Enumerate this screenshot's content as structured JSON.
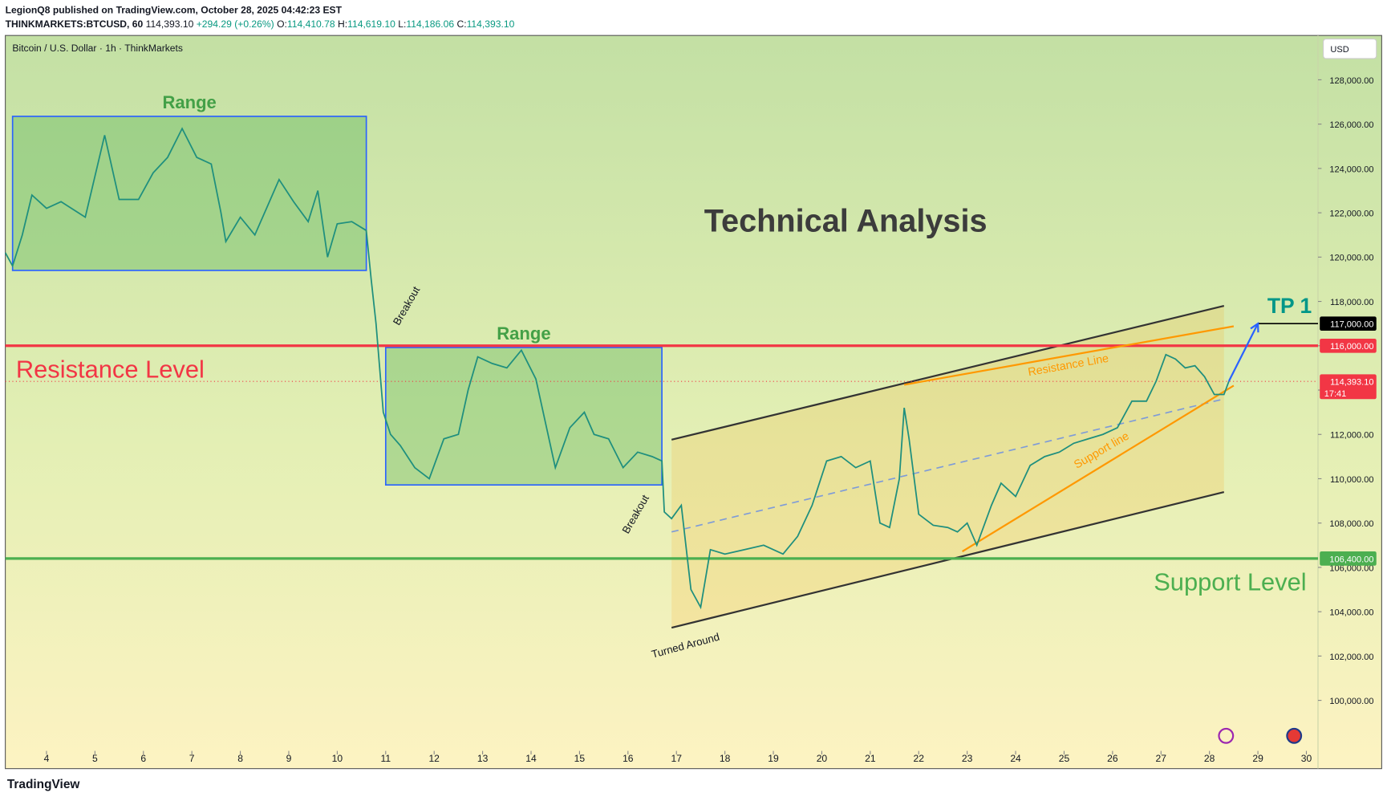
{
  "header": {
    "author": "LegionQ8 published on TradingView.com, October 28, 2025 04:42:23 EST",
    "symbol": "THINKMARKETS:BTCUSD, 60",
    "price": "114,393.10",
    "change": "+294.29 (+0.26%)",
    "ohlc": [
      {
        "key": "O:",
        "value": "114,410.78"
      },
      {
        "key": "H:",
        "value": "114,619.10"
      },
      {
        "key": "L:",
        "value": "114,186.06"
      },
      {
        "key": "C:",
        "value": "114,393.10"
      }
    ]
  },
  "chart_data": {
    "type": "line",
    "title": "Bitcoin / U.S. Dollar · 1h · ThinkMarkets",
    "currency": "USD",
    "annotation": "Technical Analysis",
    "color": "#1f8f7e",
    "x": [
      3.15,
      3.3,
      3.5,
      3.7,
      4.0,
      4.3,
      4.8,
      5.2,
      5.5,
      5.9,
      6.2,
      6.5,
      6.8,
      7.1,
      7.4,
      7.6,
      7.7,
      8.0,
      8.3,
      8.6,
      8.8,
      9.1,
      9.4,
      9.6,
      9.8,
      10.0,
      10.3,
      10.6,
      10.7,
      10.8,
      10.95,
      11.1,
      11.3,
      11.6,
      11.9,
      12.2,
      12.5,
      12.7,
      12.9,
      13.2,
      13.5,
      13.8,
      14.1,
      14.3,
      14.5,
      14.8,
      15.1,
      15.3,
      15.6,
      15.9,
      16.2,
      16.5,
      16.7,
      16.75,
      16.9,
      17.1,
      17.3,
      17.5,
      17.7,
      18.0,
      18.4,
      18.8,
      19.2,
      19.5,
      19.8,
      20.1,
      20.4,
      20.7,
      21.0,
      21.2,
      21.4,
      21.6,
      21.7,
      21.8,
      22.0,
      22.3,
      22.6,
      22.8,
      23.0,
      23.2,
      23.5,
      23.7,
      24.0,
      24.3,
      24.6,
      24.9,
      25.2,
      25.5,
      25.8,
      26.1,
      26.4,
      26.7,
      26.9,
      27.1,
      27.3,
      27.5,
      27.7,
      27.9,
      28.1,
      28.3,
      28.4
    ],
    "values": [
      120200,
      119600,
      121000,
      122800,
      122200,
      122500,
      121800,
      125500,
      122600,
      122600,
      123800,
      124500,
      125800,
      124500,
      124200,
      122000,
      120700,
      121800,
      121000,
      122500,
      123500,
      122500,
      121600,
      123000,
      120000,
      121500,
      121600,
      121200,
      119000,
      117000,
      113000,
      112000,
      111500,
      110500,
      110000,
      111800,
      112000,
      114000,
      115500,
      115200,
      115000,
      115800,
      114500,
      112500,
      110500,
      112300,
      113000,
      112000,
      111800,
      110500,
      111200,
      111000,
      110800,
      108500,
      108200,
      108800,
      105000,
      104200,
      106800,
      106600,
      106800,
      107000,
      106600,
      107400,
      108800,
      110800,
      111000,
      110500,
      110800,
      108000,
      107800,
      110000,
      113200,
      111800,
      108400,
      107900,
      107800,
      107600,
      108000,
      107000,
      108800,
      109800,
      109200,
      110600,
      111000,
      111200,
      111600,
      111800,
      112000,
      112300,
      113500,
      113500,
      114400,
      115600,
      115400,
      115000,
      115100,
      114600,
      113800,
      113800,
      114393.1
    ],
    "xlim": [
      3.15,
      30.24
    ],
    "xticks": [
      4,
      5,
      6,
      7,
      8,
      9,
      10,
      11,
      12,
      13,
      14,
      15,
      16,
      17,
      18,
      19,
      20,
      21,
      22,
      23,
      24,
      25,
      26,
      27,
      28,
      29,
      30
    ],
    "ylim": [
      96920,
      130000
    ],
    "yticks": [
      {
        "value": 100000,
        "label": "100,000.00"
      },
      {
        "value": 102000,
        "label": "102,000.00"
      },
      {
        "value": 104000,
        "label": "104,000.00"
      },
      {
        "value": 106000,
        "label": "106,000.00"
      },
      {
        "value": 108000,
        "label": "108,000.00"
      },
      {
        "value": 110000,
        "label": "110,000.00"
      },
      {
        "value": 112000,
        "label": "112,000.00"
      },
      {
        "value": 114000,
        "label": "114,000.00"
      },
      {
        "value": 116000,
        "label": "116,000.00"
      },
      {
        "value": 118000,
        "label": "118,000.00"
      },
      {
        "value": 120000,
        "label": "120,000.00"
      },
      {
        "value": 122000,
        "label": "122,000.00"
      },
      {
        "value": 124000,
        "label": "124,000.00"
      },
      {
        "value": 126000,
        "label": "126,000.00"
      },
      {
        "value": 128000,
        "label": "128,000.00"
      }
    ],
    "levels": [
      {
        "name": "Resistance Level",
        "value": 116000,
        "label": "116,000.00",
        "color": "#f23645"
      },
      {
        "name": "Support Level",
        "value": 106400,
        "label": "106,400.00",
        "color": "#4caf50"
      }
    ],
    "target": {
      "name": "TP 1",
      "value": 117000,
      "label": "117,000.00",
      "color": "#009688"
    },
    "last": {
      "value": 114393.1,
      "label": "114,393.10",
      "time": "17:41",
      "color": "#f23645"
    },
    "ranges": [
      {
        "label": "Range",
        "x": [
          3.3,
          10.6
        ],
        "y": [
          119400,
          126350
        ]
      },
      {
        "label": "Range",
        "x": [
          11.0,
          16.7
        ],
        "y": [
          109720,
          115920
        ]
      }
    ],
    "channel": {
      "upper": [
        [
          16.9,
          111760
        ],
        [
          28.3,
          117800
        ]
      ],
      "lower": [
        [
          16.9,
          103280
        ],
        [
          28.3,
          109400
        ]
      ],
      "mid": [
        [
          16.9,
          107600
        ],
        [
          28.3,
          113600
        ]
      ]
    },
    "trendlines": [
      {
        "label": "Resistance Line",
        "color": "#ff9800",
        "points": [
          [
            21.7,
            114240
          ],
          [
            28.5,
            116880
          ]
        ]
      },
      {
        "label": "Support line",
        "color": "#ff9800",
        "points": [
          [
            22.9,
            106720
          ],
          [
            28.5,
            114200
          ]
        ]
      }
    ],
    "arrow": [
      [
        28.4,
        114400
      ],
      [
        29.0,
        117000
      ]
    ],
    "notes": [
      "Breakout",
      "Breakout",
      "Turned Around"
    ]
  },
  "footer": {
    "brand": "TradingView"
  }
}
